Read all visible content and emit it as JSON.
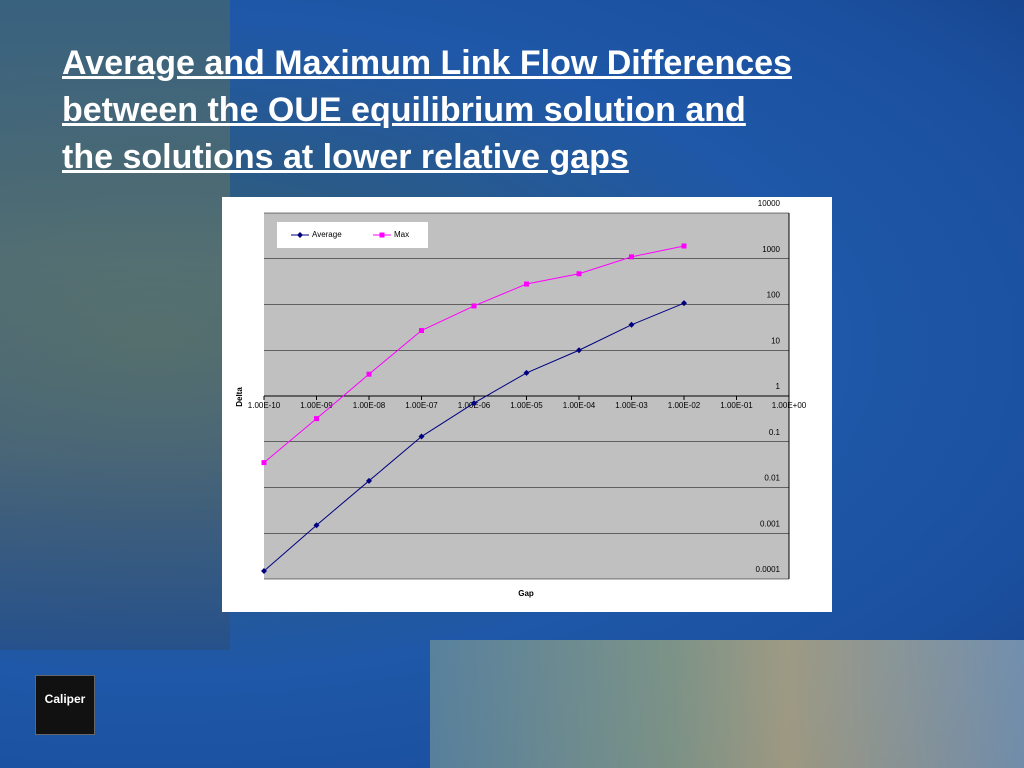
{
  "slide": {
    "title_lines": [
      "Average and Maximum Link Flow Differences",
      "between the OUE equilibrium solution and",
      "the solutions at lower relative gaps"
    ],
    "logo": "Caliper"
  },
  "chart_data": {
    "type": "line",
    "x_label": "Gap",
    "y_label": "Delta",
    "x": [
      1e-10,
      1e-09,
      1e-08,
      1e-07,
      1e-06,
      1e-05,
      0.0001,
      0.001,
      0.01
    ],
    "series": [
      {
        "name": "Average",
        "color": "#000080",
        "marker": "diamond",
        "values": [
          0.00015,
          0.0015,
          0.014,
          0.13,
          0.7,
          3.2,
          10,
          36,
          107
        ]
      },
      {
        "name": "Max",
        "color": "#ff00ff",
        "marker": "square",
        "values": [
          0.035,
          0.32,
          3.0,
          27,
          93,
          280,
          470,
          1100,
          1900
        ]
      }
    ],
    "xlim": [
      1e-10,
      1
    ],
    "ylim": [
      0.0001,
      10000
    ],
    "xlog": true,
    "ylog": true,
    "xticks": [
      {
        "value": 1e-10,
        "label": "1.00E-10"
      },
      {
        "value": 1e-09,
        "label": "1.00E-09"
      },
      {
        "value": 1e-08,
        "label": "1.00E-08"
      },
      {
        "value": 1e-07,
        "label": "1.00E-07"
      },
      {
        "value": 1e-06,
        "label": "1.00E-06"
      },
      {
        "value": 1e-05,
        "label": "1.00E-05"
      },
      {
        "value": 0.0001,
        "label": "1.00E-04"
      },
      {
        "value": 0.001,
        "label": "1.00E-03"
      },
      {
        "value": 0.01,
        "label": "1.00E-02"
      },
      {
        "value": 0.1,
        "label": "1.00E-01"
      },
      {
        "value": 1,
        "label": "1.00E+00"
      }
    ],
    "yticks": [
      0.0001,
      0.001,
      0.01,
      0.1,
      1,
      10,
      100,
      1000,
      10000
    ],
    "x_axis_at": 1,
    "grid": true,
    "legend": "top-left"
  }
}
